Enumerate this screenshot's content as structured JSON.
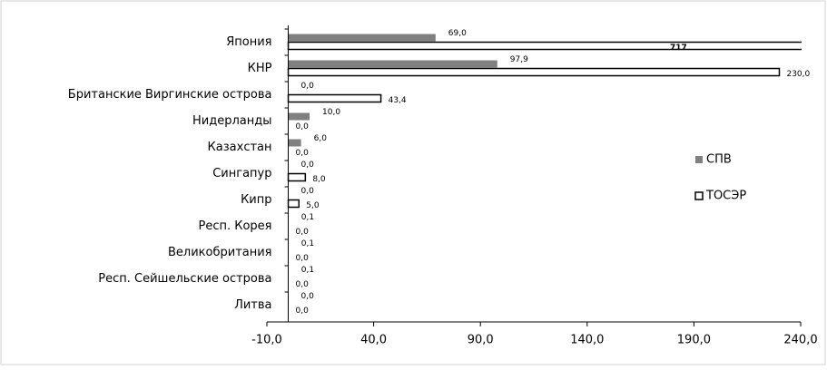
{
  "chart_data": {
    "type": "barh",
    "categories": [
      "Япония",
      "КНР",
      "Британские Виргинские острова",
      "Нидерланды",
      "Казахстан",
      "Сингапур",
      "Кипр",
      "Респ. Корея",
      "Великобритания",
      "Респ. Сейшельские острова",
      "Литва"
    ],
    "series": [
      {
        "name": "СПВ",
        "color": "#808080",
        "values": [
          69.0,
          97.9,
          0.0,
          10.0,
          6.0,
          0.0,
          0.0,
          0.1,
          0.1,
          0.1,
          0.0
        ],
        "value_labels": [
          "69,0",
          "97,9",
          "0,0",
          "10,0",
          "6,0",
          "0,0",
          "0,0",
          "0,1",
          "0,1",
          "0,1",
          "0,0"
        ]
      },
      {
        "name": "ТОСЭР",
        "color": "#ffffff",
        "values": [
          717,
          230.0,
          43.4,
          0.0,
          0.0,
          8.0,
          5.0,
          0.0,
          0.0,
          0.0,
          0.0
        ],
        "value_labels": [
          "717",
          "230,0",
          "43,4",
          "0,0",
          "0,0",
          "8,0",
          "5,0",
          "0,0",
          "0,0",
          "0,0",
          "0,0"
        ]
      }
    ],
    "xlim": [
      -10,
      240
    ],
    "xticks": [
      {
        "value": -10,
        "label": "-10,0"
      },
      {
        "value": 40,
        "label": "40,0"
      },
      {
        "value": 90,
        "label": "90,0"
      },
      {
        "value": 140,
        "label": "140,0"
      },
      {
        "value": 190,
        "label": "190,0"
      },
      {
        "value": 240,
        "label": "240,0"
      }
    ],
    "legend": "right"
  }
}
